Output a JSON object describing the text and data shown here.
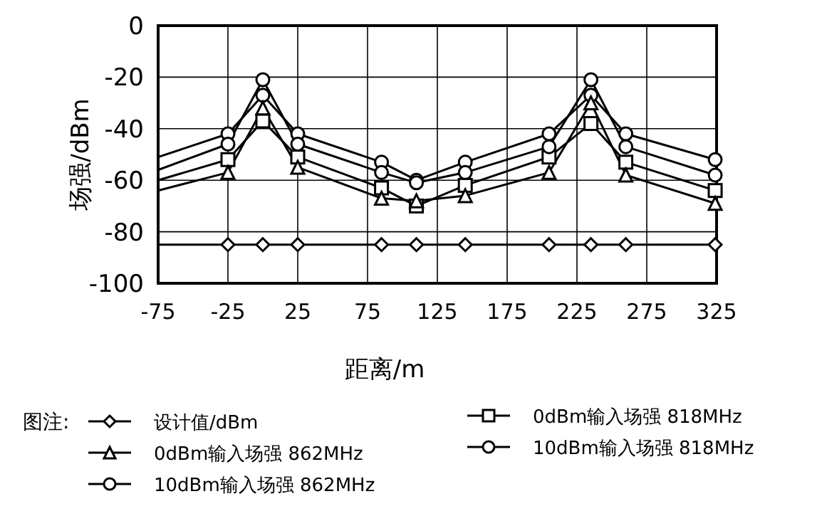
{
  "chart_data": {
    "type": "line",
    "xlabel": "距离/m",
    "ylabel": "场强/dBm",
    "legend_title": "图注:",
    "xlim": [
      -75,
      325
    ],
    "ylim": [
      -100,
      0
    ],
    "xticks": [
      -75,
      -25,
      25,
      75,
      125,
      175,
      225,
      275,
      325
    ],
    "yticks": [
      0,
      -20,
      -40,
      -60,
      -80,
      -100
    ],
    "grid": true,
    "legend": "bottom",
    "line_style": "solid",
    "x": [
      -75,
      -25,
      0,
      25,
      85,
      110,
      145,
      205,
      235,
      260,
      324
    ],
    "series": [
      {
        "name": "设计值/dBm",
        "color": "#000000",
        "marker": "diamond",
        "values": [
          -85,
          -85,
          -85,
          -85,
          -85,
          -85,
          -85,
          -85,
          -85,
          -85,
          -85
        ]
      },
      {
        "name": "0dBm输入场强  862MHz",
        "color": "#000000",
        "marker": "triangle",
        "values": [
          -64,
          -57,
          -32,
          -55,
          -67,
          -68,
          -66,
          -57,
          -30,
          -58,
          -69
        ]
      },
      {
        "name": "10dBm输入场强  862MHz",
        "color": "#000000",
        "marker": "circle",
        "values": [
          -56,
          -46,
          -21,
          -46,
          -57,
          -61,
          -57,
          -47,
          -21,
          -47,
          -58
        ]
      },
      {
        "name": "0dBm输入场强  818MHz",
        "color": "#000000",
        "marker": "square",
        "values": [
          -60,
          -52,
          -37,
          -51,
          -63,
          -70,
          -62,
          -51,
          -38,
          -53,
          -64
        ]
      },
      {
        "name": "10dBm输入场强  818MHz",
        "color": "#000000",
        "marker": "circle",
        "values": [
          -51,
          -42,
          -27,
          -42,
          -53,
          -60,
          -53,
          -42,
          -27,
          -42,
          -52
        ]
      }
    ]
  }
}
